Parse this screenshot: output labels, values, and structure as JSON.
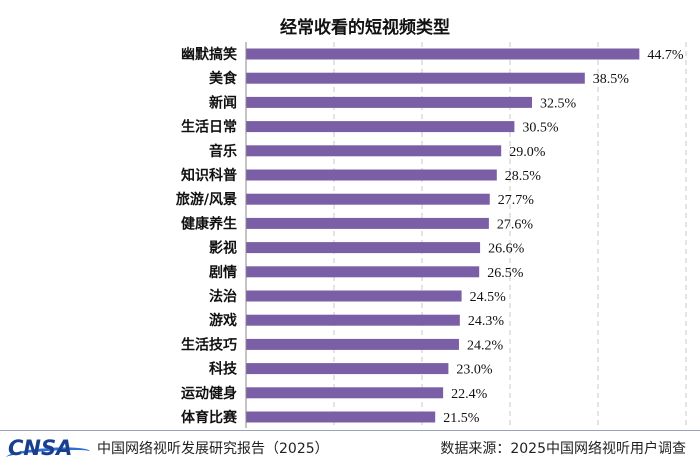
{
  "chart_data": {
    "type": "bar",
    "orientation": "horizontal",
    "title": "经常收看的短视频类型",
    "categories": [
      "幽默搞笑",
      "美食",
      "新闻",
      "生活日常",
      "音乐",
      "知识科普",
      "旅游/风景",
      "健康养生",
      "影视",
      "剧情",
      "法治",
      "游戏",
      "生活技巧",
      "科技",
      "运动健身",
      "体育比赛"
    ],
    "values": [
      44.7,
      38.5,
      32.5,
      30.5,
      29.0,
      28.5,
      27.7,
      27.6,
      26.6,
      26.5,
      24.5,
      24.3,
      24.2,
      23.0,
      22.4,
      21.5
    ],
    "value_labels": [
      "44.7%",
      "38.5%",
      "32.5%",
      "30.5%",
      "29.0%",
      "28.5%",
      "27.7%",
      "27.6%",
      "26.6%",
      "26.5%",
      "24.5%",
      "24.3%",
      "24.2%",
      "23.0%",
      "22.4%",
      "21.5%"
    ],
    "xlim": [
      0,
      50
    ],
    "grid": true,
    "bar_color": "#7a5fa6",
    "grid_color": "#c8c8c8"
  },
  "footer": {
    "logo": "CNSA",
    "left_text": "中国网络视听发展研究报告（2025）",
    "right_text": "数据来源：2025中国网络视听用户调查"
  }
}
